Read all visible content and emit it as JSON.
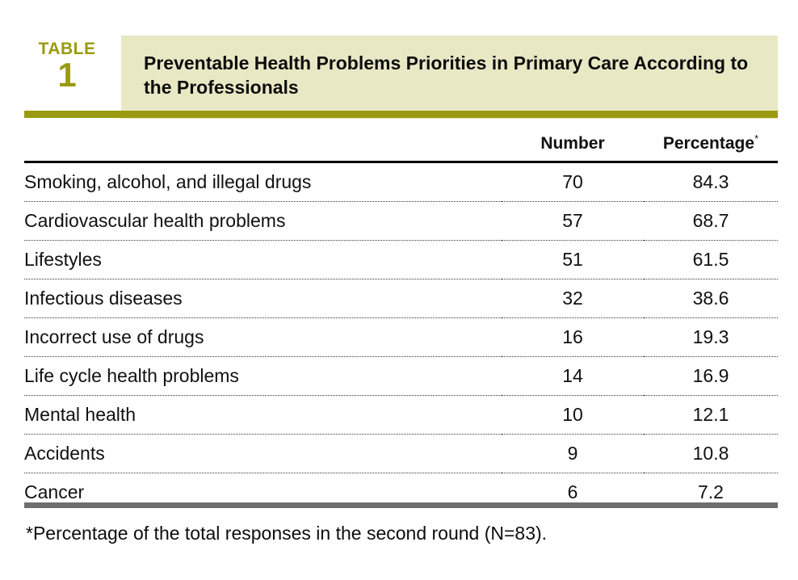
{
  "table_label": {
    "word": "TABLE",
    "number": "1"
  },
  "title": "Preventable Health Problems Priorities in Primary Care According to the Professionals",
  "columns": {
    "number": "Number",
    "percentage": "Percentage",
    "percentage_marker": "*"
  },
  "rows": [
    {
      "label": "Smoking, alcohol, and illegal drugs",
      "number": "70",
      "percentage": "84.3"
    },
    {
      "label": "Cardiovascular health problems",
      "number": "57",
      "percentage": "68.7"
    },
    {
      "label": "Lifestyles",
      "number": "51",
      "percentage": "61.5"
    },
    {
      "label": "Infectious diseases",
      "number": "32",
      "percentage": "38.6"
    },
    {
      "label": "Incorrect use of drugs",
      "number": "16",
      "percentage": "19.3"
    },
    {
      "label": "Life cycle health problems",
      "number": "14",
      "percentage": "16.9"
    },
    {
      "label": "Mental health",
      "number": "10",
      "percentage": "12.1"
    },
    {
      "label": "Accidents",
      "number": "9",
      "percentage": "10.8"
    },
    {
      "label": "Cancer",
      "number": "6",
      "percentage": "7.2"
    }
  ],
  "footnote": {
    "marker": "*",
    "text": "Percentage of the total responses in the second round (N=83)."
  },
  "colors": {
    "accent_olive": "#9a9a10",
    "title_background": "#e8e8c5",
    "bottom_rule_gray": "#6e6e6e"
  }
}
